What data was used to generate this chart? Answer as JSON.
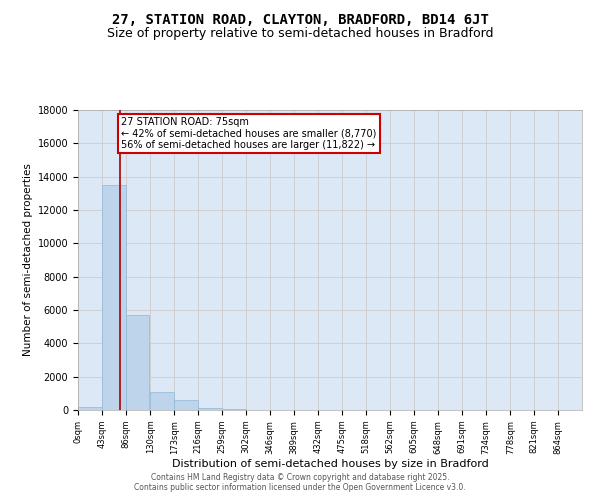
{
  "title1": "27, STATION ROAD, CLAYTON, BRADFORD, BD14 6JT",
  "title2": "Size of property relative to semi-detached houses in Bradford",
  "xlabel": "Distribution of semi-detached houses by size in Bradford",
  "ylabel": "Number of semi-detached properties",
  "footnote1": "Contains HM Land Registry data © Crown copyright and database right 2025.",
  "footnote2": "Contains public sector information licensed under the Open Government Licence v3.0.",
  "bin_labels": [
    "0sqm",
    "43sqm",
    "86sqm",
    "130sqm",
    "173sqm",
    "216sqm",
    "259sqm",
    "302sqm",
    "346sqm",
    "389sqm",
    "432sqm",
    "475sqm",
    "518sqm",
    "562sqm",
    "605sqm",
    "648sqm",
    "691sqm",
    "734sqm",
    "778sqm",
    "821sqm",
    "864sqm"
  ],
  "bin_edges": [
    0,
    43,
    86,
    130,
    173,
    216,
    259,
    302,
    346,
    389,
    432,
    475,
    518,
    562,
    605,
    648,
    691,
    734,
    778,
    821,
    864
  ],
  "bar_heights": [
    200,
    13500,
    5700,
    1100,
    600,
    150,
    50,
    10,
    0,
    0,
    0,
    0,
    0,
    0,
    0,
    0,
    0,
    0,
    0,
    0
  ],
  "bar_color": "#bdd4ea",
  "bar_edge_color": "#8fb8d8",
  "property_sqm": 75,
  "property_label": "27 STATION ROAD: 75sqm",
  "pct_smaller": 42,
  "pct_larger": 56,
  "n_smaller": 8770,
  "n_larger": 11822,
  "vline_color": "#aa0000",
  "annotation_box_color": "#cc0000",
  "ylim": [
    0,
    18000
  ],
  "yticks": [
    0,
    2000,
    4000,
    6000,
    8000,
    10000,
    12000,
    14000,
    16000,
    18000
  ],
  "grid_color": "#cccccc",
  "bg_color": "#dce8f5",
  "title_fontsize": 10,
  "subtitle_fontsize": 9
}
